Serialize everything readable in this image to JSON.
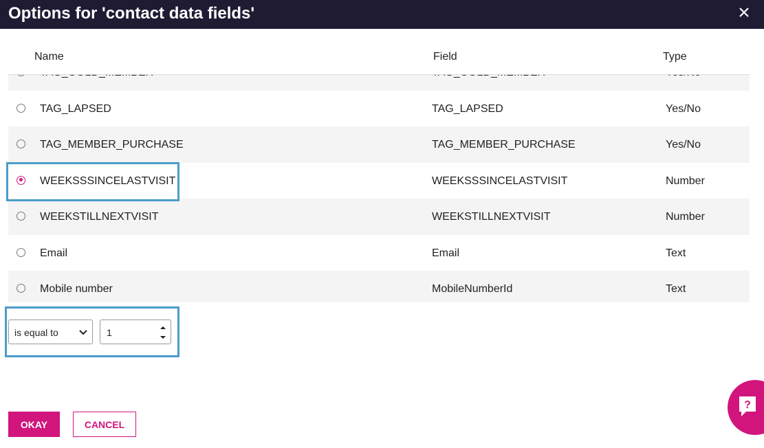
{
  "header": {
    "title": "Options for 'contact data fields'"
  },
  "table": {
    "columns": [
      "Name",
      "Field",
      "Type"
    ],
    "rows": [
      [
        "TAG_GOLD_MEMBER",
        "TAG_GOLD_MEMBER",
        "Yes/No"
      ],
      [
        "TAG_LAPSED",
        "TAG_LAPSED",
        "Yes/No"
      ],
      [
        "TAG_MEMBER_PURCHASE",
        "TAG_MEMBER_PURCHASE",
        "Yes/No"
      ],
      [
        "WEEKSSSINCELASTVISIT",
        "WEEKSSSINCELASTVISIT",
        "Number"
      ],
      [
        "WEEKSTILLNEXTVISIT",
        "WEEKSTILLNEXTVISIT",
        "Number"
      ],
      [
        "Email",
        "Email",
        "Text"
      ],
      [
        "Mobile number",
        "MobileNumberId",
        "Text"
      ]
    ],
    "selected_row": 3
  },
  "controls": {
    "operator": "is equal to",
    "value": 1
  },
  "buttons": {
    "okay": "OKAY",
    "cancel": "CANCEL"
  }
}
